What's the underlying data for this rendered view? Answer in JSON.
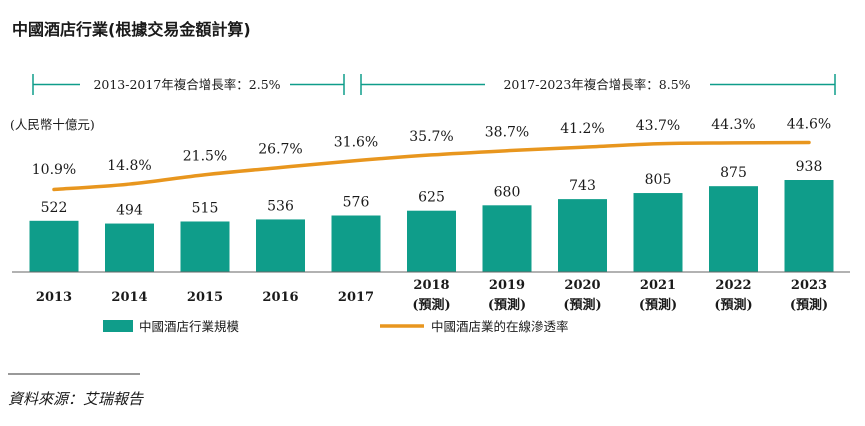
{
  "title": "中國酒店行業(根據交易金額計算)",
  "cagr": [
    {
      "label": "2013-2017年複合增長率：2.5%"
    },
    {
      "label": "2017-2023年複合增長率：8.5%"
    }
  ],
  "source": "資料來源：艾瑞報告",
  "colors": {
    "bar": "#0f9d8a",
    "line": "#e8961e",
    "cagr": "#0f9d8a"
  },
  "chart_data": {
    "type": "bar",
    "ylabel": "(人民幣十億元)",
    "categories": [
      "2013",
      "2014",
      "2015",
      "2016",
      "2017",
      "2018",
      "2019",
      "2020",
      "2021",
      "2022",
      "2023"
    ],
    "category_sublabels": [
      "",
      "",
      "",
      "",
      "",
      "(預測)",
      "(預測)",
      "(預測)",
      "(預測)",
      "(預測)",
      "(預測)"
    ],
    "series": [
      {
        "name": "中國酒店行業規模",
        "type": "bar",
        "values": [
          522,
          494,
          515,
          536,
          576,
          625,
          680,
          743,
          805,
          875,
          938
        ]
      },
      {
        "name": "中國酒店業的在線滲透率",
        "type": "line",
        "values": [
          10.9,
          14.8,
          21.5,
          26.7,
          31.6,
          35.7,
          38.7,
          41.2,
          43.7,
          44.3,
          44.6
        ],
        "labels": [
          "10.9%",
          "14.8%",
          "21.5%",
          "26.7%",
          "31.6%",
          "35.7%",
          "38.7%",
          "41.2%",
          "43.7%",
          "44.3%",
          "44.6%"
        ]
      }
    ],
    "legend": "bottom"
  }
}
